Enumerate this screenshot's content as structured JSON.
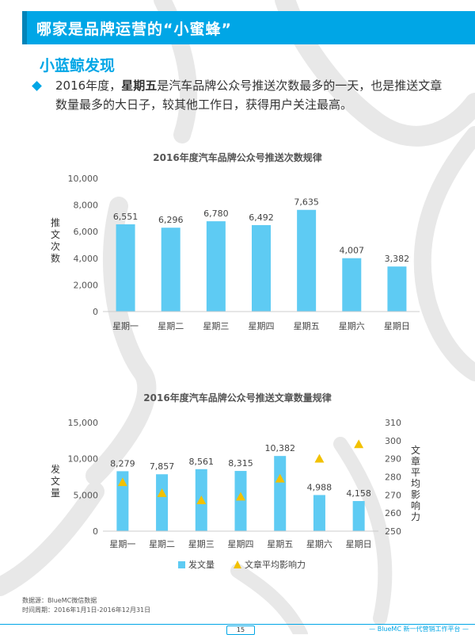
{
  "header": {
    "title": "哪家是品牌运营的“小蜜蜂”"
  },
  "section": {
    "title": "小蓝鲸发现"
  },
  "intro": {
    "pre": "2016年度，",
    "bold": "星期五",
    "post": "是汽车品牌公众号推送次数最多的一天，也是推送文章数量最多的大日子，较其他工作日，获得用户关注最高。"
  },
  "footer": {
    "source": "数据源：BlueMC微信数据",
    "period": "时间周期：2016年1月1日-2016年12月31日",
    "page": "15",
    "brand": "— BlueMC 新一代营销工作平台 —"
  },
  "colors": {
    "accent": "#00a6e6",
    "bar": "#5ecbf3",
    "marker": "#f2c100",
    "background_shape": "#e8e8e8"
  },
  "chart_data": [
    {
      "type": "bar",
      "title": "2016年度汽车品牌公众号推送次数规律",
      "categories": [
        "星期一",
        "星期二",
        "星期三",
        "星期四",
        "星期五",
        "星期六",
        "星期日"
      ],
      "values": [
        6551,
        6296,
        6780,
        6492,
        7635,
        4007,
        3382
      ],
      "value_labels": [
        "6,551",
        "6,296",
        "6,780",
        "6,492",
        "7,635",
        "4,007",
        "3,382"
      ],
      "ylabel": "推文次数",
      "ylim": [
        0,
        10000
      ],
      "yticks": [
        "0",
        "2,000",
        "4,000",
        "6,000",
        "8,000",
        "10,000"
      ],
      "grid": false
    },
    {
      "type": "bar",
      "title": "2016年度汽车品牌公众号推送文章数量规律",
      "categories": [
        "星期一",
        "星期二",
        "星期三",
        "星期四",
        "星期五",
        "星期六",
        "星期日"
      ],
      "series": [
        {
          "name": "发文量",
          "kind": "bar",
          "axis": "left",
          "values": [
            8279,
            7857,
            8561,
            8315,
            10382,
            4988,
            4158
          ],
          "value_labels": [
            "8,279",
            "7,857",
            "8,561",
            "8,315",
            "10,382",
            "4,988",
            "4,158"
          ]
        },
        {
          "name": "文章平均影响力",
          "kind": "scatter",
          "marker": "triangle",
          "axis": "right",
          "values": [
            277,
            271,
            267,
            269,
            279,
            290,
            298
          ]
        }
      ],
      "ylabel": "发文量",
      "ylim": [
        0,
        15000
      ],
      "yticks": [
        "0",
        "5,000",
        "10,000",
        "15,000"
      ],
      "y2label": "文章平均影响力",
      "y2lim": [
        250,
        310
      ],
      "y2ticks": [
        "250",
        "260",
        "270",
        "280",
        "290",
        "300",
        "310"
      ],
      "legend": "bottom",
      "grid": false
    }
  ]
}
